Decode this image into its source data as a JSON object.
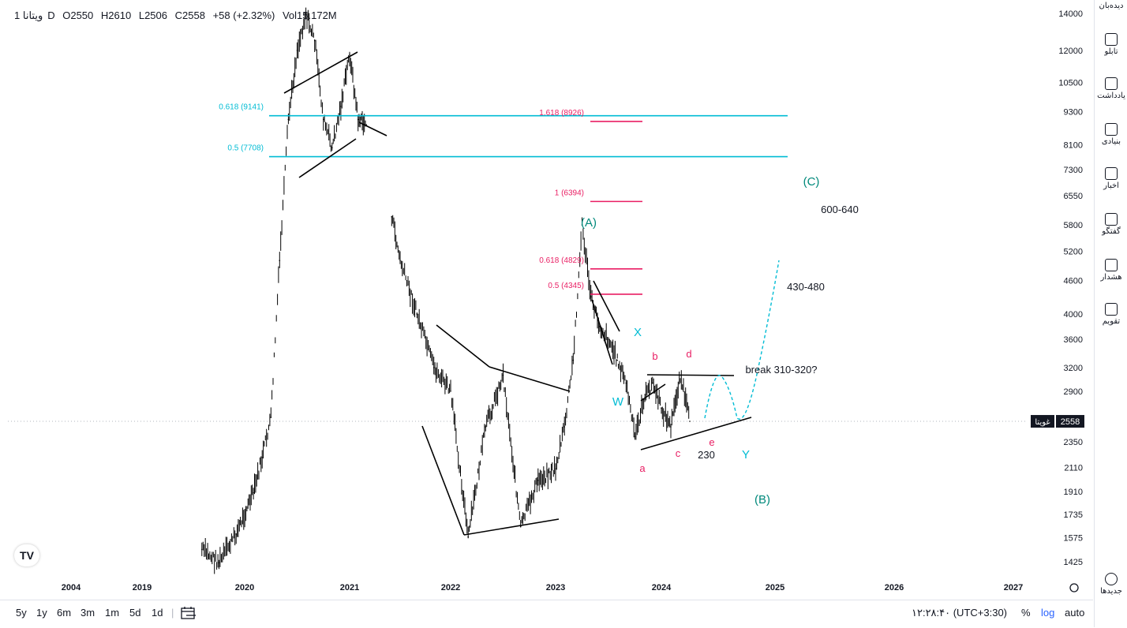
{
  "legend": {
    "symbol": "ویتانا",
    "interval": "1D",
    "open": "O2550",
    "high": "H2610",
    "low": "L2506",
    "close": "C2558",
    "change": "+58 (+2.32%)",
    "volume": "Vol15.172M"
  },
  "chart_data": {
    "type": "line",
    "scale": "log",
    "y_ticks": [
      14000,
      12000,
      10500,
      9300,
      8100,
      7300,
      6550,
      5800,
      5200,
      4600,
      4000,
      3600,
      3200,
      2900,
      2350,
      2110,
      1910,
      1735,
      1575,
      1425
    ],
    "x_ticks": [
      "2004",
      "2019",
      "2020",
      "2021",
      "2022",
      "2023",
      "2024",
      "2025",
      "2026",
      "2027"
    ],
    "current_price": "2558",
    "current_price_label": "غویتا",
    "series": [
      {
        "x": [
          "2019-08",
          "2019-10",
          "2019-12",
          "2020-02",
          "2020-03",
          "2020-04",
          "2020-05",
          "2020-06",
          "2020-07",
          "2020-08",
          "2020-09",
          "2020-10",
          "2020-11",
          "2020-12",
          "2021-01",
          "2021-02",
          "2021-03",
          "2021-06",
          "2021-07",
          "2021-09",
          "2021-11",
          "2022-01",
          "2022-03",
          "2022-05",
          "2022-07",
          "2022-09",
          "2022-11",
          "2023-01",
          "2023-02",
          "2023-03",
          "2023-04",
          "2023-05",
          "2023-06",
          "2023-07",
          "2023-08",
          "2023-09",
          "2023-10",
          "2023-11",
          "2023-12",
          "2024-01",
          "2024-02",
          "2024-03",
          "2024-04"
        ],
        "y": [
          1500,
          1420,
          1600,
          1900,
          2200,
          2600,
          5000,
          9000,
          12000,
          14000,
          12500,
          9000,
          8000,
          9500,
          11800,
          9000,
          8800,
          6000,
          5000,
          4000,
          3200,
          2900,
          1580,
          2500,
          3100,
          1650,
          2000,
          2100,
          2500,
          3300,
          5800,
          4300,
          3800,
          3600,
          3300,
          3000,
          2400,
          2800,
          3000,
          2700,
          2500,
          3100,
          2558
        ]
      }
    ],
    "fib_levels": [
      {
        "label": "0.618 (9141)",
        "value": 9141
      },
      {
        "label": "0.5 (7708)",
        "value": 7708
      },
      {
        "label": "1.618 (8926)",
        "value": 8926
      },
      {
        "label": "1 (6394)",
        "value": 6394
      },
      {
        "label": "0.618 (4829)",
        "value": 4829
      },
      {
        "label": "0.5 (4345)",
        "value": 4345
      }
    ],
    "annotations": [
      {
        "text": "(C)"
      },
      {
        "text": "600-640"
      },
      {
        "text": "(A)"
      },
      {
        "text": "430-480"
      },
      {
        "text": "X"
      },
      {
        "text": "b"
      },
      {
        "text": "d"
      },
      {
        "text": "break 310-320?"
      },
      {
        "text": "W"
      },
      {
        "text": "e"
      },
      {
        "text": "c"
      },
      {
        "text": "230"
      },
      {
        "text": "Y"
      },
      {
        "text": "a"
      },
      {
        "text": "(B)"
      }
    ],
    "colors": {
      "fib_cyan": "#00bcd4",
      "fib_pink": "#e91e63",
      "wave_teal": "#00897b",
      "wave_pink": "#e91e63",
      "wave_cyan": "#00bcd4",
      "candles": "#000000"
    }
  },
  "bottom": {
    "timeframes": [
      "5y",
      "1y",
      "6m",
      "3m",
      "1m",
      "5d",
      "1d"
    ],
    "clock": "۱۲:۲۸:۴۰ (UTC+3:30)",
    "percent": "%",
    "log": "log",
    "auto": "auto"
  },
  "right_bar": [
    {
      "label": "دیده‌بان",
      "icon": "watchlist-icon"
    },
    {
      "label": "تابلو",
      "icon": "board-icon"
    },
    {
      "label": "یادداشت",
      "icon": "note-icon"
    },
    {
      "label": "بنیادی",
      "icon": "fundamental-icon"
    },
    {
      "label": "اخبار",
      "icon": "news-icon"
    },
    {
      "label": "گفتگو",
      "icon": "chat-icon"
    },
    {
      "label": "هشدار",
      "icon": "alert-icon"
    },
    {
      "label": "تقویم",
      "icon": "calendar-icon"
    },
    {
      "label": "جدیدها",
      "icon": "whats-new-icon"
    }
  ]
}
